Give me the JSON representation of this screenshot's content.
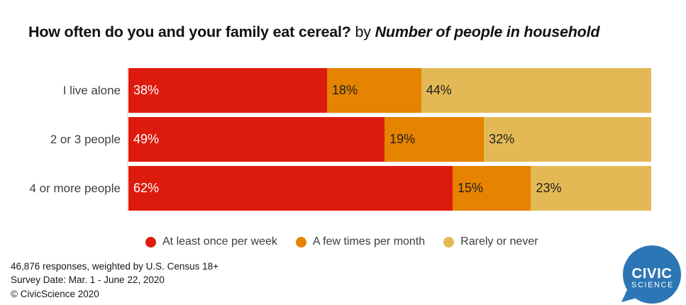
{
  "title": {
    "main": "How often do you and your family eat cereal?",
    "connector": " by ",
    "group": "Number of people in household"
  },
  "chart_data": {
    "type": "bar",
    "variant": "horizontal-stacked",
    "title": "How often do you and your family eat cereal? by Number of people in household",
    "categories": [
      "I live alone",
      "2 or 3 people",
      "4 or more people"
    ],
    "series": [
      {
        "name": "At least once per week",
        "color": "#dd1b0d",
        "label_color": "#ffffff",
        "values": [
          38,
          49,
          62
        ]
      },
      {
        "name": "A few times per month",
        "color": "#e68300",
        "label_color": "#1f1f1f",
        "values": [
          18,
          19,
          15
        ]
      },
      {
        "name": "Rarely or never",
        "color": "#e3b955",
        "label_color": "#1f1f1f",
        "values": [
          44,
          32,
          23
        ]
      }
    ],
    "value_suffix": "%",
    "xlim": [
      0,
      100
    ],
    "grid": false,
    "legend_position": "bottom"
  },
  "footer": {
    "line1": "46,876 responses, weighted by U.S. Census 18+",
    "line2": "Survey Date: Mar. 1 - June 22, 2020",
    "line3": "© CivicScience 2020"
  },
  "logo": {
    "line1": "CIVIC",
    "line2": "SCIENCE",
    "color": "#2d76b5"
  }
}
